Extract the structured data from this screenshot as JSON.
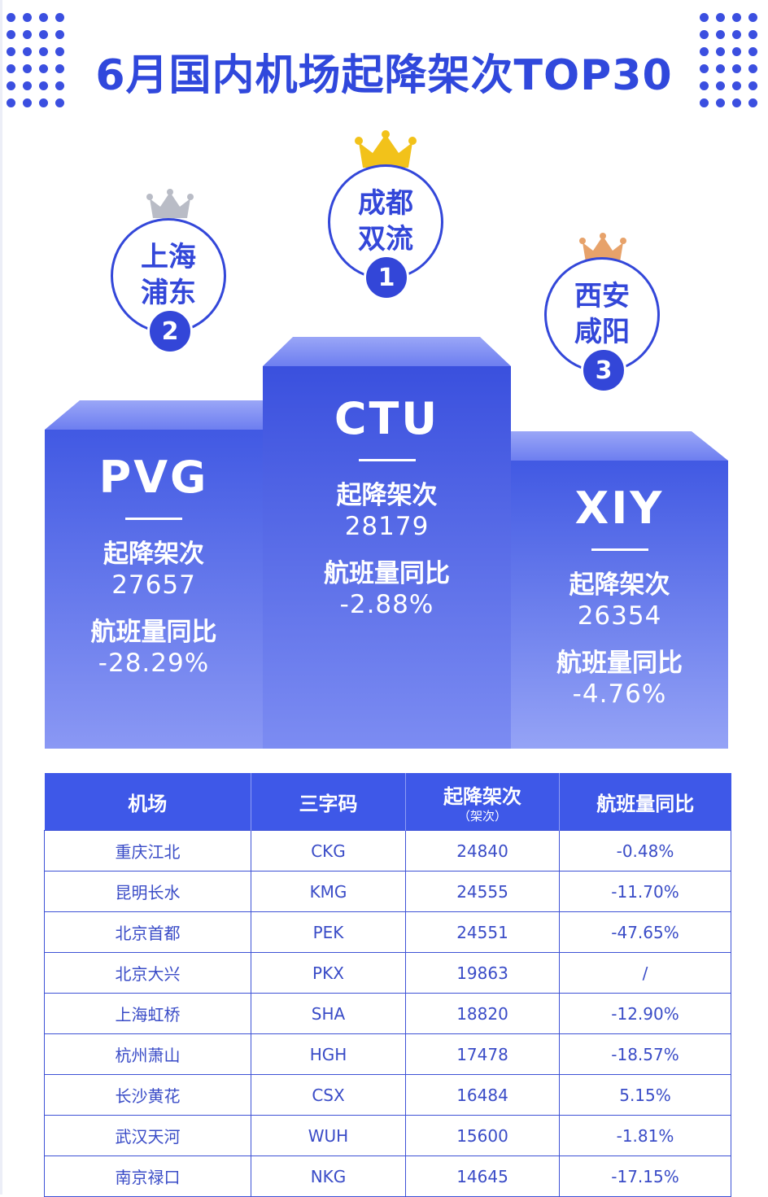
{
  "title": "6月国内机场起降架次TOP30",
  "colors": {
    "brand": "#3048dc",
    "accent": "#3e58e8",
    "gold": "#f2c21a",
    "silver": "#b9bcc6",
    "bronze": "#e7a26a"
  },
  "podium": [
    {
      "rank": "2",
      "name_line1": "上海",
      "name_line2": "浦东",
      "code": "PVG",
      "flights_label": "起降架次",
      "flights": "27657",
      "yoy_label": "航班量同比",
      "yoy": "-28.29%",
      "crown": "silver-crown"
    },
    {
      "rank": "1",
      "name_line1": "成都",
      "name_line2": "双流",
      "code": "CTU",
      "flights_label": "起降架次",
      "flights": "28179",
      "yoy_label": "航班量同比",
      "yoy": "-2.88%",
      "crown": "gold-crown"
    },
    {
      "rank": "3",
      "name_line1": "西安",
      "name_line2": "咸阳",
      "code": "XIY",
      "flights_label": "起降架次",
      "flights": "26354",
      "yoy_label": "航班量同比",
      "yoy": "-4.76%",
      "crown": "bronze-crown"
    }
  ],
  "chart_data": {
    "type": "table",
    "title": "6月国内机场起降架次TOP30",
    "columns": [
      "机场",
      "三字码",
      "起降架次",
      "航班量同比"
    ],
    "column_sub": [
      "",
      "",
      "（架次）",
      ""
    ],
    "rows": [
      [
        "成都双流",
        "CTU",
        "28179",
        "-2.88%"
      ],
      [
        "上海浦东",
        "PVG",
        "27657",
        "-28.29%"
      ],
      [
        "西安咸阳",
        "XIY",
        "26354",
        "-4.76%"
      ],
      [
        "重庆江北",
        "CKG",
        "24840",
        "-0.48%"
      ],
      [
        "昆明长水",
        "KMG",
        "24555",
        "-11.70%"
      ],
      [
        "北京首都",
        "PEK",
        "24551",
        "-47.65%"
      ],
      [
        "北京大兴",
        "PKX",
        "19863",
        "/"
      ],
      [
        "上海虹桥",
        "SHA",
        "18820",
        "-12.90%"
      ],
      [
        "杭州萧山",
        "HGH",
        "17478",
        "-18.57%"
      ],
      [
        "长沙黄花",
        "CSX",
        "16484",
        "5.15%"
      ],
      [
        "武汉天河",
        "WUH",
        "15600",
        "-1.81%"
      ],
      [
        "南京禄口",
        "NKG",
        "14645",
        "-17.15%"
      ]
    ]
  },
  "table_rows": [
    {
      "airport": "重庆江北",
      "code": "CKG",
      "flights": "24840",
      "yoy": "-0.48%"
    },
    {
      "airport": "昆明长水",
      "code": "KMG",
      "flights": "24555",
      "yoy": "-11.70%"
    },
    {
      "airport": "北京首都",
      "code": "PEK",
      "flights": "24551",
      "yoy": "-47.65%"
    },
    {
      "airport": "北京大兴",
      "code": "PKX",
      "flights": "19863",
      "yoy": "/"
    },
    {
      "airport": "上海虹桥",
      "code": "SHA",
      "flights": "18820",
      "yoy": "-12.90%"
    },
    {
      "airport": "杭州萧山",
      "code": "HGH",
      "flights": "17478",
      "yoy": "-18.57%"
    },
    {
      "airport": "长沙黄花",
      "code": "CSX",
      "flights": "16484",
      "yoy": "5.15%"
    },
    {
      "airport": "武汉天河",
      "code": "WUH",
      "flights": "15600",
      "yoy": "-1.81%"
    },
    {
      "airport": "南京禄口",
      "code": "NKG",
      "flights": "14645",
      "yoy": "-17.15%"
    }
  ]
}
